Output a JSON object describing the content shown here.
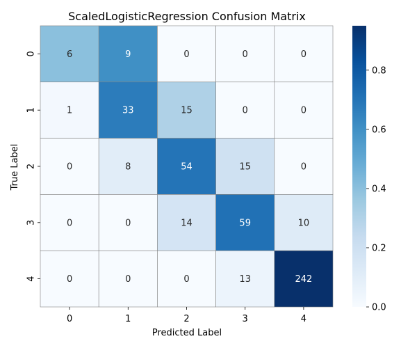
{
  "chart_data": {
    "type": "heatmap",
    "title": "ScaledLogisticRegression Confusion Matrix",
    "xlabel": "Predicted Label",
    "ylabel": "True Label",
    "x_categories": [
      "0",
      "1",
      "2",
      "3",
      "4"
    ],
    "y_categories": [
      "0",
      "1",
      "2",
      "3",
      "4"
    ],
    "values": [
      [
        6,
        9,
        0,
        0,
        0
      ],
      [
        1,
        33,
        15,
        0,
        0
      ],
      [
        0,
        8,
        54,
        15,
        0
      ],
      [
        0,
        0,
        14,
        59,
        10
      ],
      [
        0,
        0,
        0,
        13,
        242
      ]
    ],
    "color_scale": "row-normalized",
    "colormap": "Blues",
    "colorbar": {
      "range": [
        0,
        0.95
      ],
      "ticks": [
        0.0,
        0.2,
        0.4,
        0.6,
        0.8
      ],
      "tick_labels": [
        "0.0",
        "0.2",
        "0.4",
        "0.6",
        "0.8"
      ]
    },
    "grid_color": "#808080",
    "annotation_light_text": "#ffffff",
    "annotation_dark_text": "#262626"
  }
}
